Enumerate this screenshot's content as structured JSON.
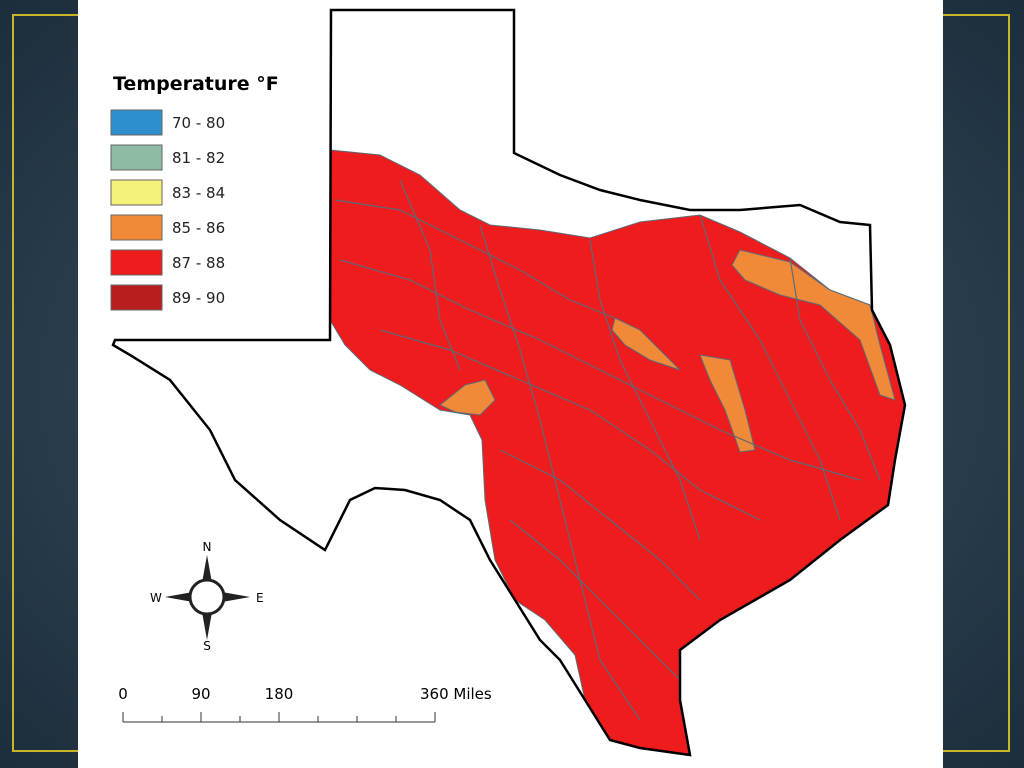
{
  "legend": {
    "title": "Temperature °F",
    "items": [
      {
        "label": "70 - 80",
        "color": "#2f8fce"
      },
      {
        "label": "81 - 82",
        "color": "#8fbaa3"
      },
      {
        "label": "83 - 84",
        "color": "#f5f27a"
      },
      {
        "label": "85 - 86",
        "color": "#f08a38"
      },
      {
        "label": "87 - 88",
        "color": "#ee1c1c"
      },
      {
        "label": "89 - 90",
        "color": "#b81e1e"
      }
    ]
  },
  "compass": {
    "north": "N",
    "south": "S",
    "east": "E",
    "west": "W"
  },
  "scale": {
    "labels": [
      "0",
      "90",
      "180",
      "360 Miles"
    ]
  }
}
